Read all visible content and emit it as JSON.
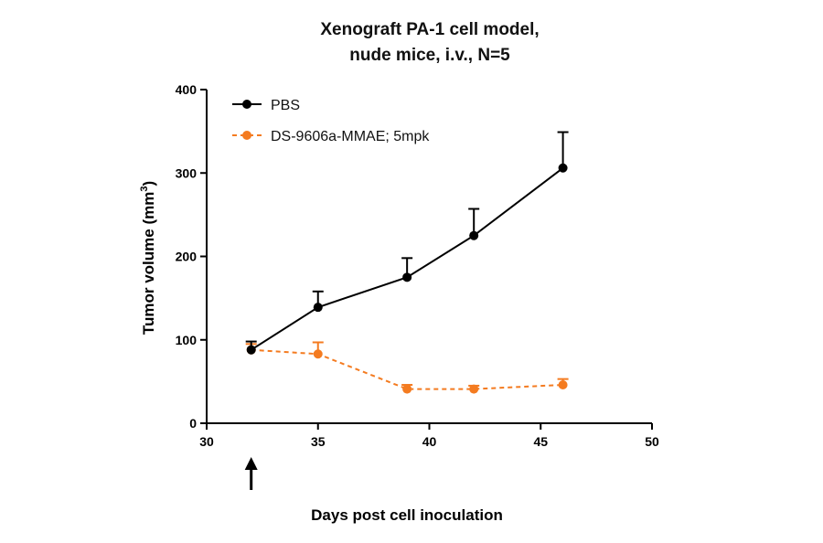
{
  "chart_data": {
    "type": "line",
    "title_line1": "Xenograft PA-1 cell model,",
    "title_line2": "nude mice, i.v., N=5",
    "xlabel": "Days post cell inoculation",
    "ylabel_main": "Tumor volume (mm",
    "ylabel_sup": "3",
    "ylabel_close": ")",
    "xlim": [
      30,
      50
    ],
    "ylim": [
      0,
      400
    ],
    "xticks": [
      30,
      35,
      40,
      45,
      50
    ],
    "yticks": [
      0,
      100,
      200,
      300,
      400
    ],
    "grid": false,
    "legend_position": "top-left",
    "dosing_marker_x": 32,
    "series": [
      {
        "name": "PBS",
        "color": "#000000",
        "line_style": "solid",
        "marker": "circle",
        "x": [
          32,
          35,
          39,
          42,
          46
        ],
        "y": [
          88,
          139,
          175,
          225,
          306
        ],
        "error_upper": [
          10,
          19,
          23,
          32,
          43
        ]
      },
      {
        "name": "DS-9606a-MMAE; 5mpk",
        "color": "#f47b20",
        "line_style": "dashed",
        "marker": "circle",
        "x": [
          32,
          35,
          39,
          42,
          46
        ],
        "y": [
          88,
          83,
          41,
          41,
          46
        ],
        "error_upper": [
          7,
          14,
          5,
          4,
          7
        ]
      }
    ]
  }
}
